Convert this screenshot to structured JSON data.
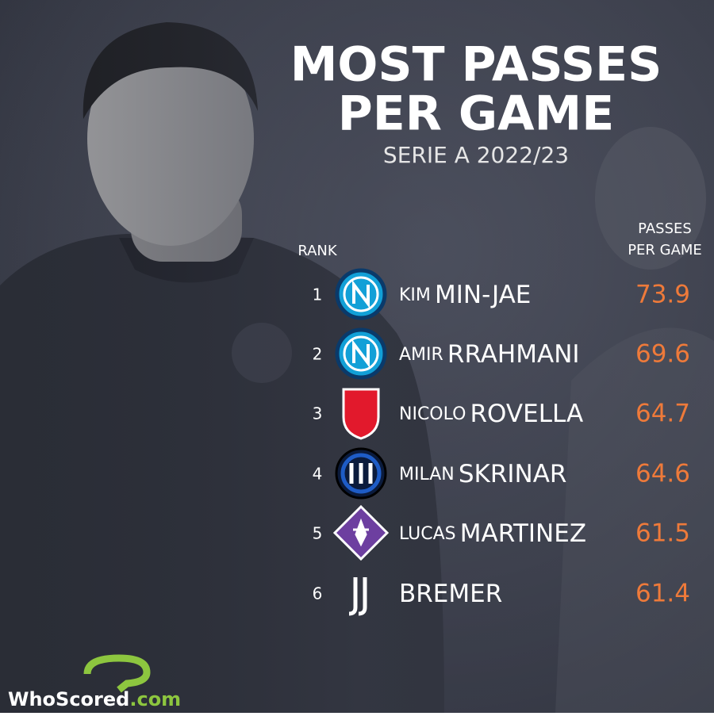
{
  "header": {
    "title_lines": [
      "MOST PASSES",
      "PER GAME"
    ],
    "subtitle": "SERIE A 2022/23"
  },
  "table": {
    "rank_header": "RANK",
    "value_header_lines": [
      "PASSES",
      "PER GAME"
    ],
    "rows": [
      {
        "rank": 1,
        "first_name": "KIM",
        "last_name": "MIN-JAE",
        "value": 73.9
      },
      {
        "rank": 2,
        "first_name": "AMIR",
        "last_name": "RRAHMANI",
        "value": 69.6
      },
      {
        "rank": 3,
        "first_name": "NICOLO",
        "last_name": "ROVELLA",
        "value": 64.7
      },
      {
        "rank": 4,
        "first_name": "MILAN",
        "last_name": "SKRINAR",
        "value": 64.6
      },
      {
        "rank": 5,
        "first_name": "LUCAS",
        "last_name": "MARTINEZ",
        "value": 61.5
      },
      {
        "rank": 6,
        "first_name": "",
        "last_name": "BREMER",
        "value": 61.4
      }
    ]
  },
  "footer": {
    "brand": "WhoScored",
    "brand_suffix": ".com"
  }
}
